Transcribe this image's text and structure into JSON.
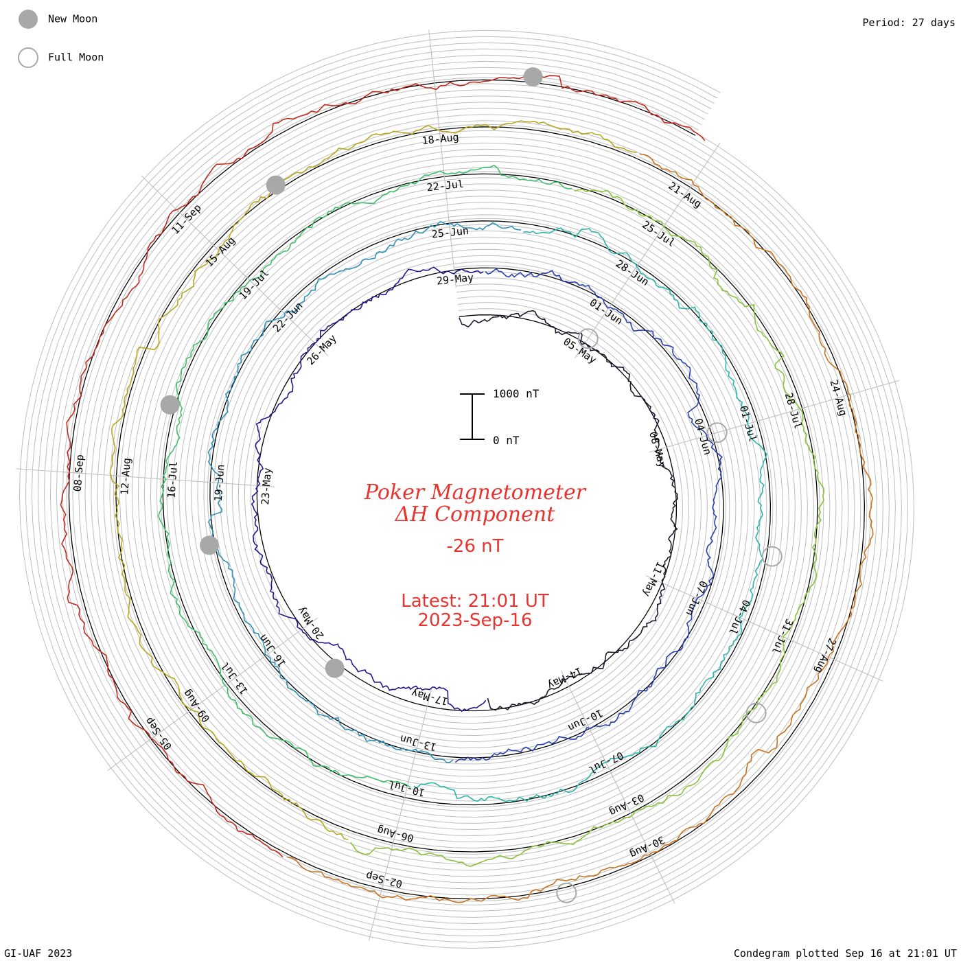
{
  "legend": {
    "new_moon": "New Moon",
    "full_moon": "Full Moon"
  },
  "period": "Period: 27 days",
  "footer_left": "GI-UAF 2023",
  "footer_right": "Condegram plotted Sep 16 at 21:01 UT",
  "title_line1": "Poker Magnetometer",
  "title_line2": "ΔH Component",
  "current_value": "-26 nT",
  "latest_line1": "Latest: 21:01 UT",
  "latest_line2": "2023-Sep-16",
  "scale_top": "1000 nT",
  "scale_bottom": "0 nT",
  "colors": {
    "grid": "#bdbdbd",
    "accent": "#e8332f"
  },
  "chart_data": {
    "type": "line",
    "title": "Poker Magnetometer ΔH Component",
    "start": "2023-05-02",
    "end": "2023-09-16",
    "period_days": 27,
    "units": "nT",
    "scale_nT": [
      0,
      1000
    ],
    "series_colors": [
      "#1a1a2e",
      "#1f1a8c",
      "#2a3fb0",
      "#2f8fb8",
      "#2bb5a8",
      "#3fbf6a",
      "#8ac23a",
      "#b8a81e",
      "#c8731e",
      "#c02a1e"
    ],
    "date_labels": [
      {
        "label": "05-May"
      },
      {
        "label": "08-May"
      },
      {
        "label": "11-May"
      },
      {
        "label": "14-May"
      },
      {
        "label": "17-May"
      },
      {
        "label": "20-May"
      },
      {
        "label": "23-May"
      },
      {
        "label": "26-May"
      },
      {
        "label": "29-May"
      },
      {
        "label": "01-Jun"
      },
      {
        "label": "04-Jun"
      },
      {
        "label": "07-Jun"
      },
      {
        "label": "10-Jun"
      },
      {
        "label": "13-Jun"
      },
      {
        "label": "16-Jun"
      },
      {
        "label": "19-Jun"
      },
      {
        "label": "22-Jun"
      },
      {
        "label": "25-Jun"
      },
      {
        "label": "28-Jun"
      },
      {
        "label": "01-Jul"
      },
      {
        "label": "04-Jul"
      },
      {
        "label": "07-Jul"
      },
      {
        "label": "10-Jul"
      },
      {
        "label": "13-Jul"
      },
      {
        "label": "16-Jul"
      },
      {
        "label": "19-Jul"
      },
      {
        "label": "22-Jul"
      },
      {
        "label": "25-Jul"
      },
      {
        "label": "28-Jul"
      },
      {
        "label": "31-Jul"
      },
      {
        "label": "03-Aug"
      },
      {
        "label": "06-Aug"
      },
      {
        "label": "09-Aug"
      },
      {
        "label": "12-Aug"
      },
      {
        "label": "15-Aug"
      },
      {
        "label": "18-Aug"
      },
      {
        "label": "21-Aug"
      },
      {
        "label": "24-Aug"
      },
      {
        "label": "27-Aug"
      },
      {
        "label": "30-Aug"
      },
      {
        "label": "02-Sep"
      },
      {
        "label": "05-Sep"
      },
      {
        "label": "08-Sep"
      },
      {
        "label": "11-Sep"
      }
    ],
    "new_moons": [
      "2023-05-19",
      "2023-06-18",
      "2023-07-17",
      "2023-08-16",
      "2023-09-15"
    ],
    "full_moons": [
      "2023-05-05",
      "2023-06-04",
      "2023-07-03",
      "2023-08-01",
      "2023-08-31"
    ],
    "grid": true
  }
}
